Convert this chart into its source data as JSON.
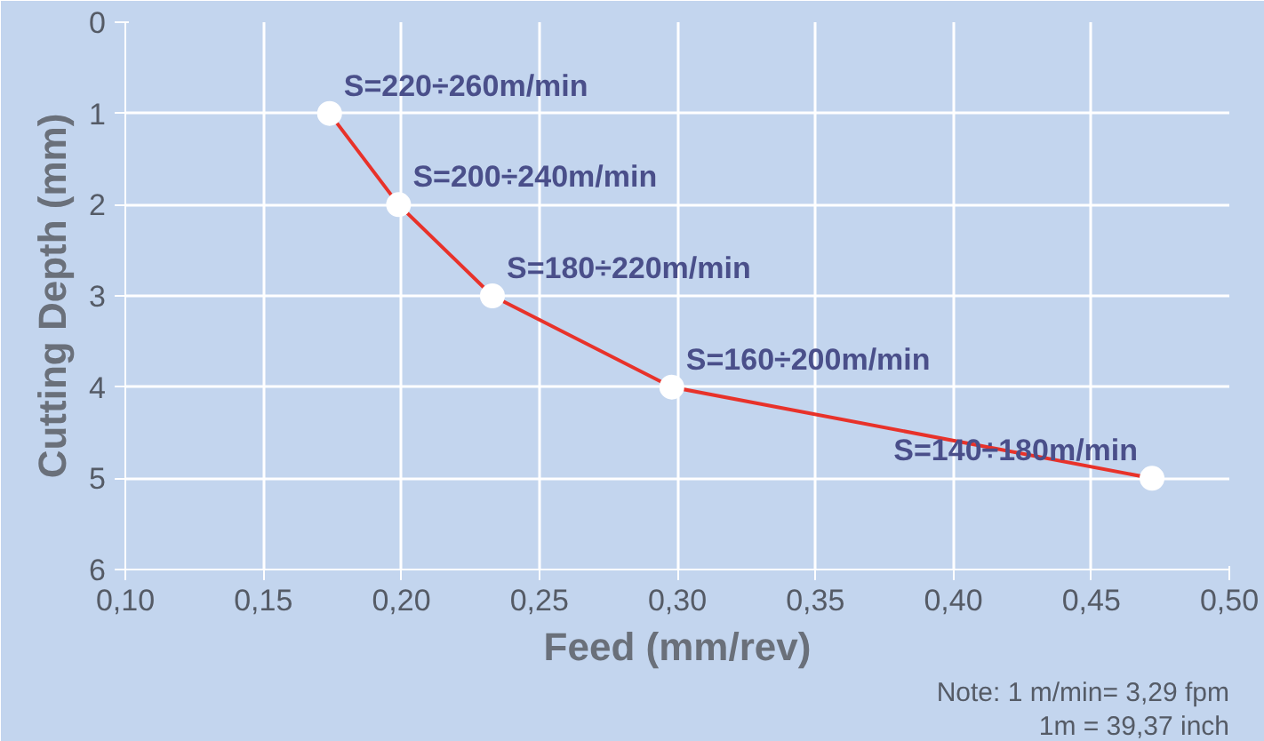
{
  "chart_data": {
    "type": "line",
    "xlabel": "Feed (mm/rev)",
    "ylabel": "Cutting Depth (mm)",
    "x": [
      0.174,
      0.199,
      0.233,
      0.298,
      0.472
    ],
    "series": [
      {
        "color": "#e8322a",
        "values": [
          1,
          2,
          3,
          4,
          5
        ]
      }
    ],
    "xlim": [
      0.1,
      0.5
    ],
    "ylim": [
      6,
      0
    ],
    "xticks": [
      {
        "value": 0.1,
        "label": "0,10"
      },
      {
        "value": 0.15,
        "label": "0,15"
      },
      {
        "value": 0.2,
        "label": "0,20"
      },
      {
        "value": 0.25,
        "label": "0,25"
      },
      {
        "value": 0.3,
        "label": "0,30"
      },
      {
        "value": 0.35,
        "label": "0,35"
      },
      {
        "value": 0.4,
        "label": "0,40"
      },
      {
        "value": 0.45,
        "label": "0,45"
      },
      {
        "value": 0.5,
        "label": "0,50"
      }
    ],
    "yticks": [
      0,
      1,
      2,
      3,
      4,
      5,
      6
    ],
    "grid": true,
    "marker": "circle",
    "line_style": "solid",
    "annotations": [
      {
        "text": "S=220÷260m/min",
        "x": 0.174,
        "y": 1
      },
      {
        "text": "S=200÷240m/min",
        "x": 0.199,
        "y": 2
      },
      {
        "text": "S=180÷220m/min",
        "x": 0.233,
        "y": 3
      },
      {
        "text": "S=160÷200m/min",
        "x": 0.298,
        "y": 4
      },
      {
        "text": "S=140÷180m/min",
        "x": 0.472,
        "y": 5
      },
      "Note: 1 m/min= 3,29 fpm",
      "1m = 39,37 inch"
    ]
  }
}
